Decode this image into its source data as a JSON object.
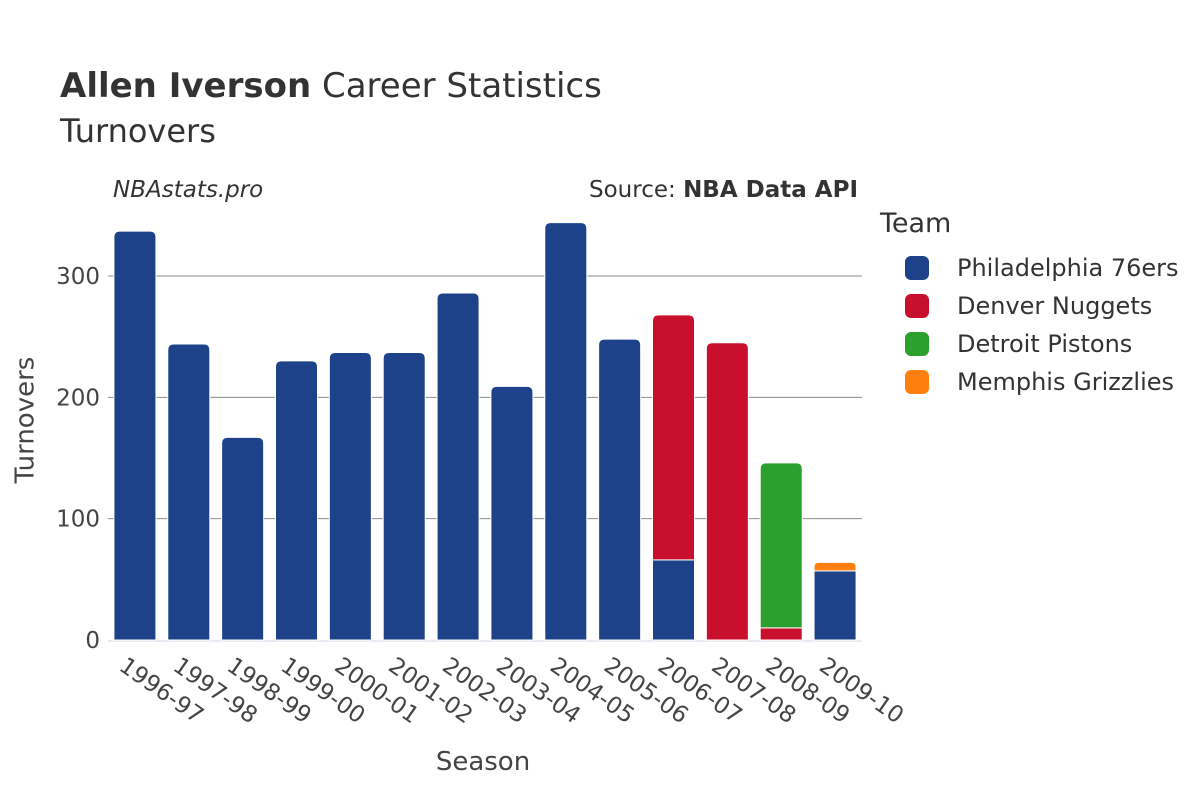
{
  "header": {
    "title_bold": "Allen Iverson",
    "title_rest": " Career Statistics",
    "subtitle": "Turnovers",
    "watermark": "NBAstats.pro",
    "source_prefix": "Source: ",
    "source_bold": "NBA Data API"
  },
  "legend": {
    "title": "Team",
    "items": [
      {
        "label": "Philadelphia 76ers",
        "color": "#1d428a"
      },
      {
        "label": "Denver Nuggets",
        "color": "#c8102e"
      },
      {
        "label": "Detroit Pistons",
        "color": "#2ca02c"
      },
      {
        "label": "Memphis Grizzlies",
        "color": "#ff7f0e"
      }
    ]
  },
  "chart_data": {
    "type": "bar",
    "stacked": true,
    "title": "Allen Iverson Career Statistics",
    "subtitle": "Turnovers",
    "xlabel": "Season",
    "ylabel": "Turnovers",
    "ylim": [
      0,
      350
    ],
    "yticks": [
      0,
      100,
      200,
      300
    ],
    "grid": true,
    "legend_position": "right",
    "categories": [
      "1996-97",
      "1997-98",
      "1998-99",
      "1999-00",
      "2000-01",
      "2001-02",
      "2002-03",
      "2003-04",
      "2004-05",
      "2005-06",
      "2006-07",
      "2007-08",
      "2008-09",
      "2009-10"
    ],
    "series": [
      {
        "name": "Philadelphia 76ers",
        "color": "#1d428a",
        "values": [
          337,
          244,
          167,
          230,
          237,
          237,
          286,
          209,
          344,
          248,
          66,
          0,
          0,
          57
        ]
      },
      {
        "name": "Denver Nuggets",
        "color": "#c8102e",
        "values": [
          0,
          0,
          0,
          0,
          0,
          0,
          0,
          0,
          0,
          0,
          202,
          245,
          10,
          0
        ]
      },
      {
        "name": "Detroit Pistons",
        "color": "#2ca02c",
        "values": [
          0,
          0,
          0,
          0,
          0,
          0,
          0,
          0,
          0,
          0,
          0,
          0,
          136,
          0
        ]
      },
      {
        "name": "Memphis Grizzlies",
        "color": "#ff7f0e",
        "values": [
          0,
          0,
          0,
          0,
          0,
          0,
          0,
          0,
          0,
          0,
          0,
          0,
          0,
          7
        ]
      }
    ]
  }
}
